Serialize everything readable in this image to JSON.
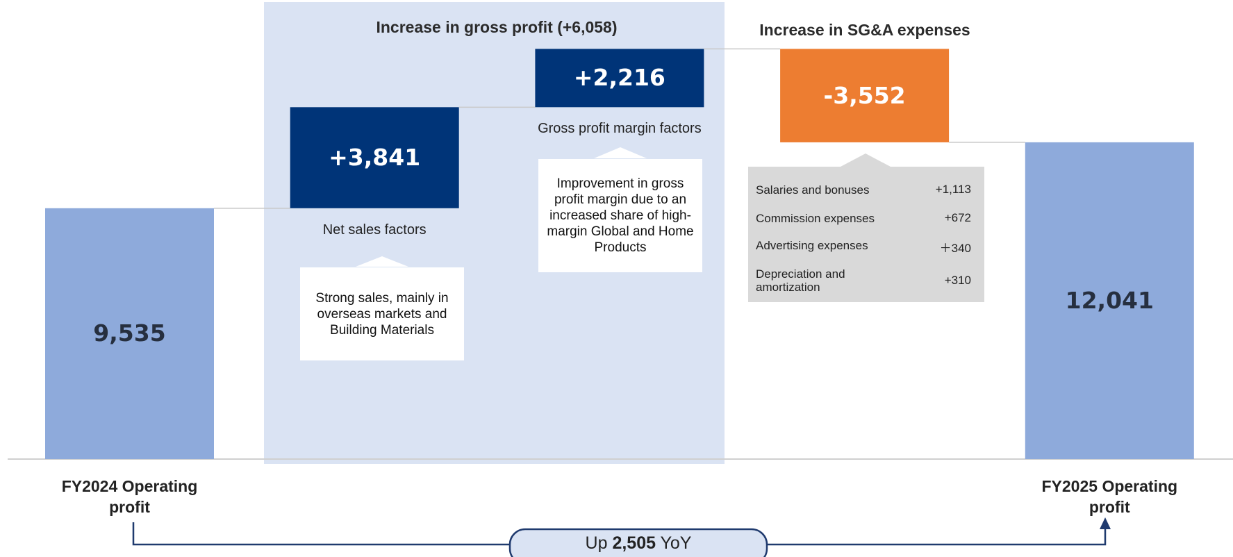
{
  "chart_data": {
    "type": "waterfall",
    "categories": [
      "FY2024 Operating profit",
      "Net sales factors",
      "Gross profit margin factors",
      null,
      "FY2025 Operating profit"
    ],
    "values": [
      9535,
      3841,
      2216,
      -3552,
      12041
    ],
    "value_labels": [
      "9,535",
      "+3,841",
      "+2,216",
      "-3,552",
      "12,041"
    ],
    "measures": [
      "absolute",
      "relative",
      "relative",
      "relative",
      "total"
    ],
    "colors": [
      "#8eaadb",
      "#003478",
      "#003478",
      "#ed7d31",
      "#8eaadb"
    ],
    "annotations": {
      "gross_profit_title": "Increase in gross profit (+6,058)",
      "sga_title": "Increase in SG&A expenses",
      "net_sales_note": "Strong sales, mainly in overseas markets and Building Materials",
      "margin_note": "Improvement in gross profit margin due to an increased share of high-margin Global and Home Products",
      "sga_breakdown": [
        {
          "name": "Salaries and bonuses",
          "value": "+1,113"
        },
        {
          "name": "Commission expenses",
          "value": "+672"
        },
        {
          "name": "Advertising expenses",
          "value": "＋340"
        },
        {
          "name": "Depreciation and amortization",
          "value": "+310"
        }
      ],
      "yoy": {
        "prefix": "Up",
        "value": "2,505",
        "suffix": "YoY"
      }
    }
  }
}
